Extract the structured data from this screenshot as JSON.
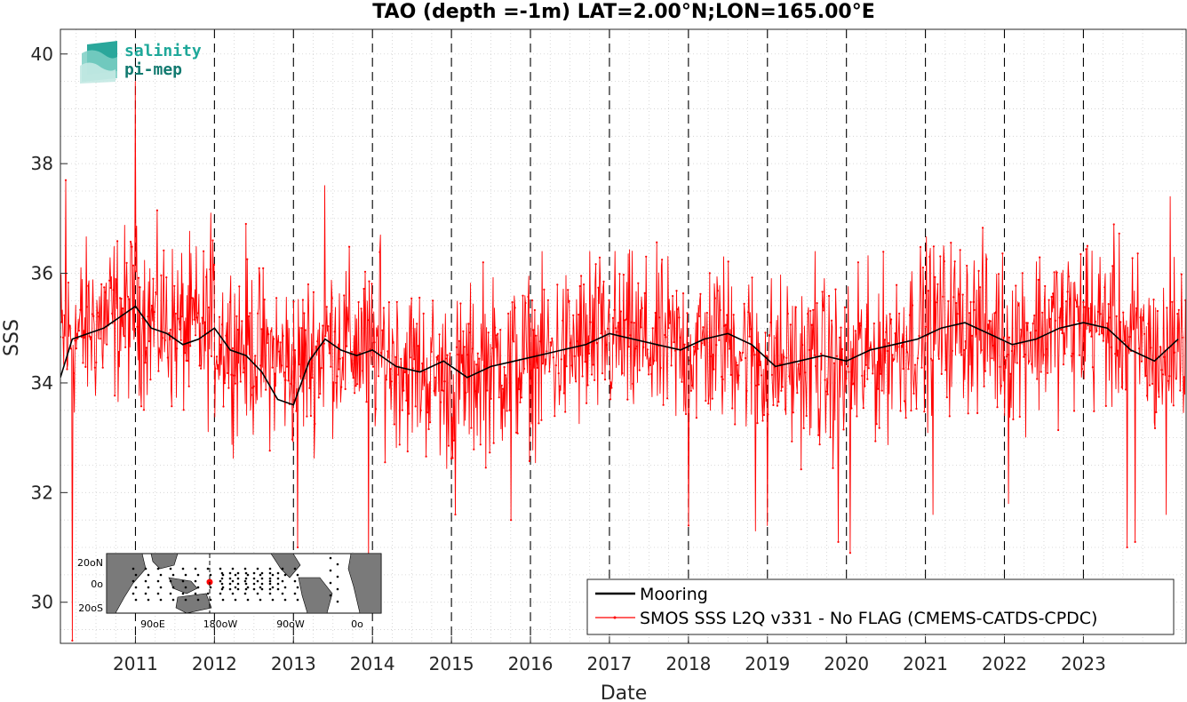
{
  "chart_data": {
    "type": "line",
    "title": "TAO (depth =-1m) LAT=2.00°N;LON=165.00°E",
    "xlabel": "Date",
    "ylabel": "SSS",
    "xlim": [
      2010.05,
      2024.3
    ],
    "ylim": [
      29.25,
      40.45
    ],
    "x_ticks": [
      "2011",
      "2012",
      "2013",
      "2014",
      "2015",
      "2016",
      "2017",
      "2018",
      "2019",
      "2020",
      "2021",
      "2022",
      "2023"
    ],
    "y_ticks": [
      30,
      32,
      34,
      36,
      38,
      40
    ],
    "grid": "dotted",
    "year_separators": "dashed vertical lines at each year",
    "legend_position": "bottom-right",
    "series": [
      {
        "name": "Mooring",
        "color": "#000000",
        "x": [
          2010.05,
          2010.2,
          2010.4,
          2010.6,
          2010.8,
          2011.0,
          2011.2,
          2011.4,
          2011.6,
          2011.8,
          2012.0,
          2012.2,
          2012.4,
          2012.6,
          2012.8,
          2013.0,
          2013.2,
          2013.4,
          2013.6,
          2013.8,
          2014.0,
          2014.3,
          2014.6,
          2014.9,
          2015.2,
          2015.5,
          2015.8,
          2016.1,
          2016.4,
          2016.7,
          2017.0,
          2017.3,
          2017.6,
          2017.9,
          2018.2,
          2018.5,
          2018.8,
          2019.1,
          2019.4,
          2019.7,
          2020.0,
          2020.3,
          2020.6,
          2020.9,
          2021.2,
          2021.5,
          2021.8,
          2022.1,
          2022.4,
          2022.7,
          2023.0,
          2023.3,
          2023.6,
          2023.9,
          2024.2
        ],
        "values": [
          34.1,
          34.8,
          34.9,
          35.0,
          35.2,
          35.4,
          35.0,
          34.9,
          34.7,
          34.8,
          35.0,
          34.6,
          34.5,
          34.2,
          33.7,
          33.6,
          34.4,
          34.8,
          34.6,
          34.5,
          34.6,
          34.3,
          34.2,
          34.4,
          34.1,
          34.3,
          34.4,
          34.5,
          34.6,
          34.7,
          34.9,
          34.8,
          34.7,
          34.6,
          34.8,
          34.9,
          34.7,
          34.3,
          34.4,
          34.5,
          34.4,
          34.6,
          34.7,
          34.8,
          35.0,
          35.1,
          34.9,
          34.7,
          34.8,
          35.0,
          35.1,
          35.0,
          34.6,
          34.4,
          34.8
        ]
      },
      {
        "name": "SMOS SSS L2Q v331 - No FLAG  (CMEMS-CATDS-CPDC)",
        "color": "#ff0000",
        "start": 2010.05,
        "end": 2024.3,
        "count": 1700,
        "baseline_x": [
          2010.05,
          2010.5,
          2011.0,
          2011.5,
          2012.0,
          2012.5,
          2013.0,
          2013.5,
          2014.0,
          2014.5,
          2015.0,
          2015.5,
          2016.0,
          2016.5,
          2017.0,
          2017.5,
          2018.0,
          2018.5,
          2019.0,
          2019.5,
          2020.0,
          2020.5,
          2021.0,
          2021.5,
          2022.0,
          2022.5,
          2023.0,
          2023.5,
          2024.0,
          2024.3
        ],
        "baseline_y": [
          34.7,
          35.1,
          35.3,
          35.0,
          34.9,
          34.6,
          34.3,
          34.8,
          34.6,
          34.3,
          34.0,
          34.3,
          34.4,
          34.6,
          34.8,
          34.7,
          34.6,
          34.8,
          34.4,
          34.3,
          34.2,
          34.6,
          35.0,
          35.1,
          34.8,
          35.0,
          35.1,
          35.0,
          34.4,
          34.9
        ],
        "spread": 0.75,
        "peaks": [
          [
            2010.12,
            37.7
          ],
          [
            2010.2,
            29.3
          ],
          [
            2011.0,
            40.3
          ],
          [
            2011.0,
            39.5
          ],
          [
            2011.95,
            37.1
          ],
          [
            2012.4,
            36.9
          ],
          [
            2013.05,
            31.0
          ],
          [
            2013.4,
            37.6
          ],
          [
            2013.95,
            30.6
          ],
          [
            2014.1,
            36.7
          ],
          [
            2015.05,
            31.6
          ],
          [
            2015.4,
            36.2
          ],
          [
            2015.75,
            31.5
          ],
          [
            2016.75,
            36.4
          ],
          [
            2018.0,
            31.4
          ],
          [
            2018.85,
            31.3
          ],
          [
            2019.0,
            31.4
          ],
          [
            2019.6,
            36.4
          ],
          [
            2019.9,
            31.1
          ],
          [
            2020.05,
            30.9
          ],
          [
            2020.15,
            36.2
          ],
          [
            2021.05,
            36.3
          ],
          [
            2021.1,
            31.6
          ],
          [
            2022.05,
            31.8
          ],
          [
            2023.05,
            36.5
          ],
          [
            2023.55,
            31.0
          ],
          [
            2023.65,
            31.1
          ],
          [
            2024.1,
            37.4
          ],
          [
            2024.05,
            31.6
          ]
        ]
      }
    ]
  },
  "legend": {
    "mooring_label": "Mooring",
    "smos_label": "SMOS SSS L2Q v331 - No FLAG  (CMEMS-CATDS-CPDC)"
  },
  "inset_map": {
    "lat_labels": [
      "20oN",
      "0o",
      "20oS"
    ],
    "lon_labels": [
      "90oE",
      "180oW",
      "90oW",
      "0o"
    ]
  },
  "logo": {
    "line1": "salinity",
    "line2": "pi-mep"
  }
}
